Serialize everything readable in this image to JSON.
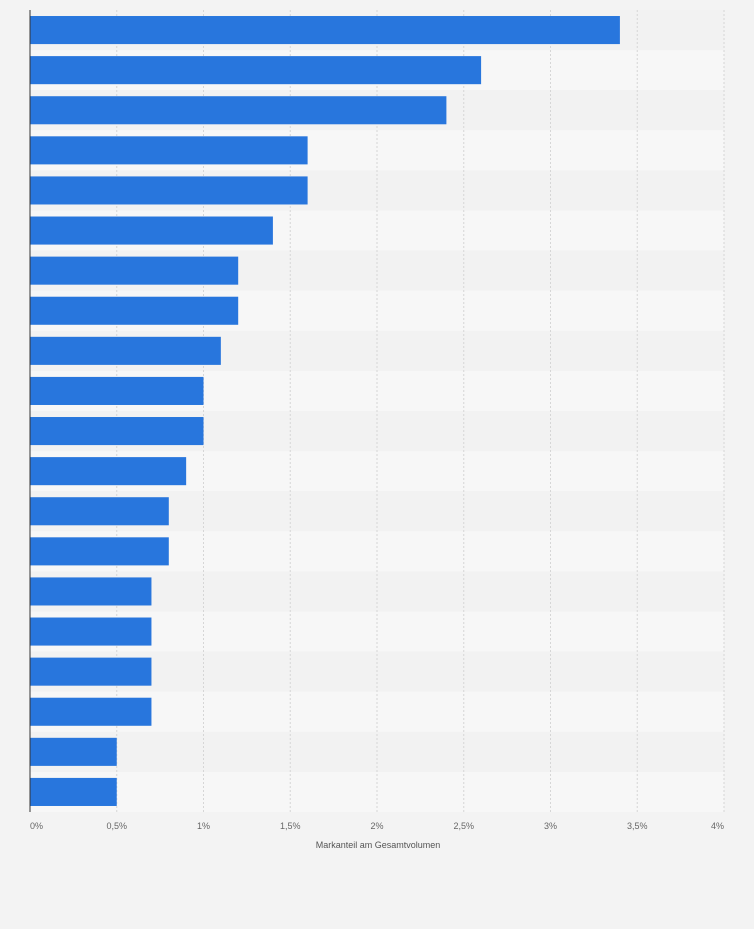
{
  "chart_data": {
    "type": "bar",
    "orientation": "horizontal",
    "title": "",
    "xlabel": "Markanteil am Gesamtvolumen",
    "ylabel": "",
    "xlim": [
      0,
      4
    ],
    "x_tick_values": [
      0,
      0.5,
      1,
      1.5,
      2,
      2.5,
      3,
      3.5,
      4
    ],
    "x_tick_labels": [
      "0%",
      "0,5%",
      "1%",
      "1,5%",
      "2%",
      "2,5%",
      "3%",
      "3,5%",
      "4%"
    ],
    "values": [
      3.4,
      2.6,
      2.4,
      1.6,
      1.6,
      1.4,
      1.2,
      1.2,
      1.1,
      1.0,
      1.0,
      0.9,
      0.8,
      0.8,
      0.7,
      0.7,
      0.7,
      0.7,
      0.5,
      0.5
    ],
    "grid": true,
    "legend": "none",
    "colors": {
      "bar": "#2876dd",
      "background": "#f3f3f3",
      "row_band_light": "#f7f7f7",
      "row_band_dark": "#f2f2f2",
      "grid": "#d6d6d6",
      "axis": "#333333"
    }
  }
}
